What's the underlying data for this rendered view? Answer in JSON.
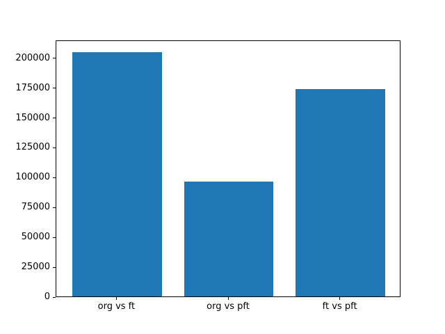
{
  "figure": {
    "background": "#ffffff"
  },
  "chart_data": {
    "type": "bar",
    "title": "",
    "xlabel": "",
    "ylabel": "",
    "categories": [
      "org vs ft",
      "org vs pft",
      "ft vs pft"
    ],
    "values": [
      204700,
      96300,
      173900
    ],
    "ylim": [
      0,
      215000
    ],
    "yticks": [
      0,
      25000,
      50000,
      75000,
      100000,
      125000,
      150000,
      175000,
      200000
    ],
    "ytick_labels": [
      "0",
      "25000",
      "50000",
      "75000",
      "100000",
      "125000",
      "150000",
      "175000",
      "200000"
    ],
    "bar_color": "#1f77b4",
    "axis_color": "#000000",
    "grid": false,
    "legend_position": "none",
    "bar_width_ratio": 0.8,
    "x_edge_pad": 0.544
  }
}
